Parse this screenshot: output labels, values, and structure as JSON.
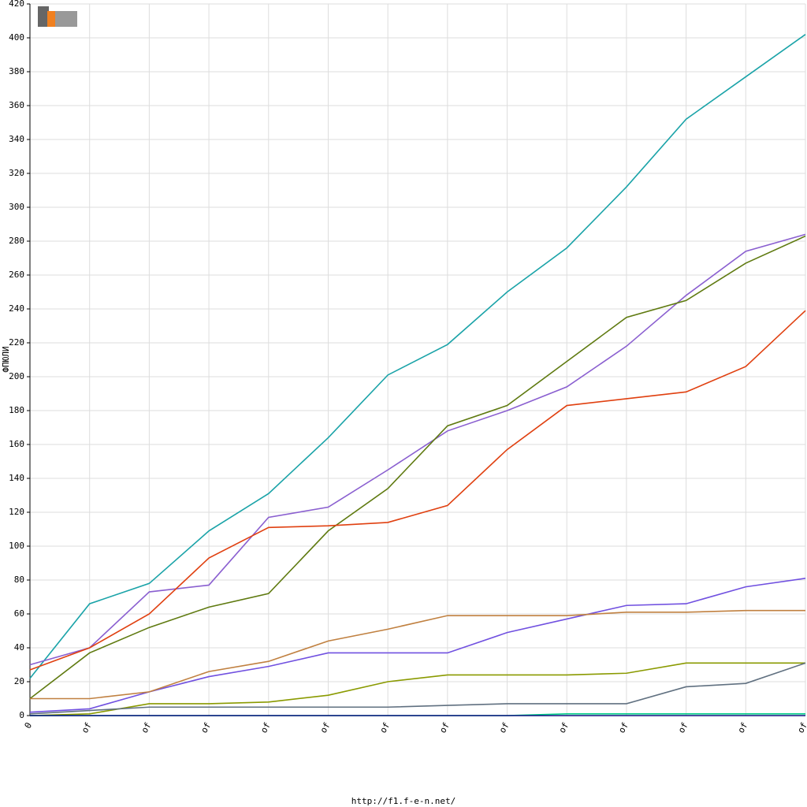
{
  "chart_data": {
    "type": "line",
    "y_label": "ФПЮЛИ",
    "footer": "http://f1.f-e-n.net/",
    "categories": [
      "0",
      "of",
      "of",
      "of",
      "of",
      "of",
      "of",
      "of",
      "of",
      "of",
      "of",
      "of",
      "of",
      "of"
    ],
    "ylim": [
      0,
      420
    ],
    "yticks": [
      0,
      20,
      40,
      60,
      80,
      100,
      120,
      140,
      160,
      180,
      200,
      220,
      240,
      260,
      280,
      300,
      320,
      340,
      360,
      380,
      400,
      420
    ],
    "grid": true,
    "series": [
      {
        "color": "#1aa3a8",
        "values": [
          22,
          66,
          78,
          109,
          131,
          164,
          201,
          219,
          250,
          276,
          312,
          352,
          377,
          402
        ]
      },
      {
        "color": "#8a5fd0",
        "values": [
          30,
          40,
          73,
          77,
          117,
          123,
          145,
          168,
          180,
          194,
          218,
          248,
          274,
          284
        ]
      },
      {
        "color": "#5f7a10",
        "values": [
          10,
          37,
          52,
          64,
          72,
          109,
          134,
          171,
          183,
          209,
          235,
          245,
          267,
          283
        ]
      },
      {
        "color": "#e04010",
        "values": [
          27,
          40,
          60,
          93,
          111,
          112,
          114,
          124,
          157,
          183,
          187,
          191,
          206,
          239
        ]
      },
      {
        "color": "#7050e0",
        "values": [
          2,
          4,
          14,
          23,
          29,
          37,
          37,
          37,
          49,
          57,
          65,
          66,
          76,
          81
        ]
      },
      {
        "color": "#c08040",
        "values": [
          10,
          10,
          14,
          26,
          32,
          44,
          51,
          59,
          59,
          59,
          61,
          61,
          62,
          62
        ]
      },
      {
        "color": "#8a9a00",
        "values": [
          0,
          1,
          7,
          7,
          8,
          12,
          20,
          24,
          24,
          24,
          25,
          31,
          31,
          31
        ]
      },
      {
        "color": "#607080",
        "values": [
          1,
          3,
          5,
          5,
          5,
          5,
          5,
          6,
          7,
          7,
          7,
          17,
          19,
          31
        ]
      },
      {
        "color": "#00cc88",
        "values": [
          0,
          0,
          0,
          0,
          0,
          0,
          0,
          0,
          0,
          1,
          1,
          1,
          1,
          1
        ]
      },
      {
        "color": "#101080",
        "values": [
          0,
          0,
          0,
          0,
          0,
          0,
          0,
          0,
          0,
          0,
          0,
          0,
          0,
          0
        ]
      }
    ]
  }
}
